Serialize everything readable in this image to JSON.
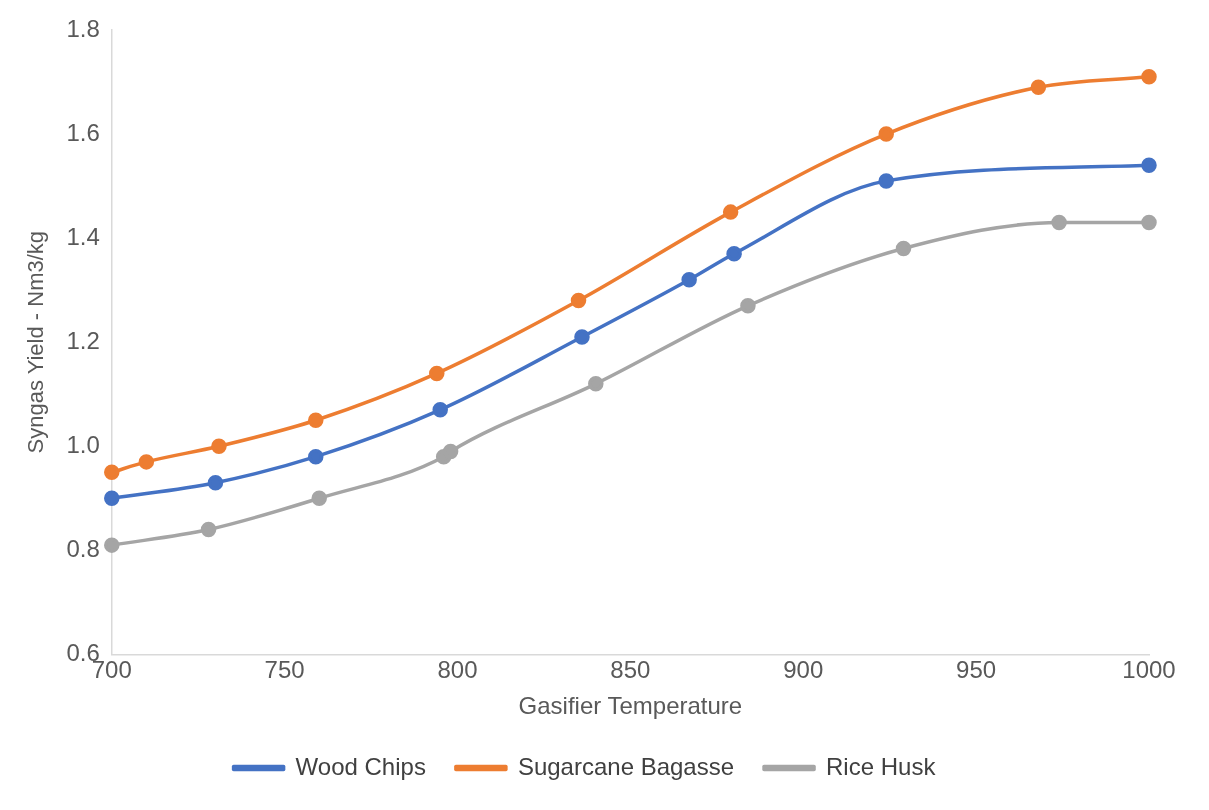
{
  "chart_data": {
    "type": "line",
    "xlabel": "Gasifier Temperature",
    "ylabel": "Syngas Yield - Nm3/kg",
    "xlim": [
      700,
      1000
    ],
    "xticks": [
      700,
      750,
      800,
      850,
      900,
      950,
      1000
    ],
    "ylim": [
      0.6,
      1.8
    ],
    "yticks": [
      {
        "value": 0.6,
        "label": "0.6"
      },
      {
        "value": 0.8,
        "label": "0.8"
      },
      {
        "value": 1.0,
        "label": "1.0"
      },
      {
        "value": 1.2,
        "label": "1.2"
      },
      {
        "value": 1.4,
        "label": "1.4"
      },
      {
        "value": 1.6,
        "label": "1.6"
      },
      {
        "value": 1.8,
        "label": "1.8"
      }
    ],
    "grid": false,
    "legend": "bottom",
    "marker": "circle",
    "line_style": "solid",
    "series": [
      {
        "name": "Wood Chips",
        "color": "#4472c4",
        "x": [
          700,
          730,
          759,
          795,
          836,
          867,
          880,
          924,
          1000
        ],
        "values": [
          0.9,
          0.93,
          0.98,
          1.07,
          1.21,
          1.32,
          1.37,
          1.51,
          1.54
        ]
      },
      {
        "name": "Sugarcane Bagasse",
        "color": "#ed7d31",
        "x": [
          700,
          710,
          731,
          759,
          794,
          835,
          879,
          924,
          968,
          1000
        ],
        "values": [
          0.95,
          0.97,
          1.0,
          1.05,
          1.14,
          1.28,
          1.45,
          1.6,
          1.69,
          1.71
        ]
      },
      {
        "name": "Rice Husk",
        "color": "#a5a5a5",
        "x": [
          700,
          728,
          760,
          796,
          798,
          840,
          884,
          929,
          974,
          1000
        ],
        "values": [
          0.81,
          0.84,
          0.9,
          0.98,
          0.99,
          1.12,
          1.27,
          1.38,
          1.43,
          1.43
        ]
      }
    ]
  }
}
